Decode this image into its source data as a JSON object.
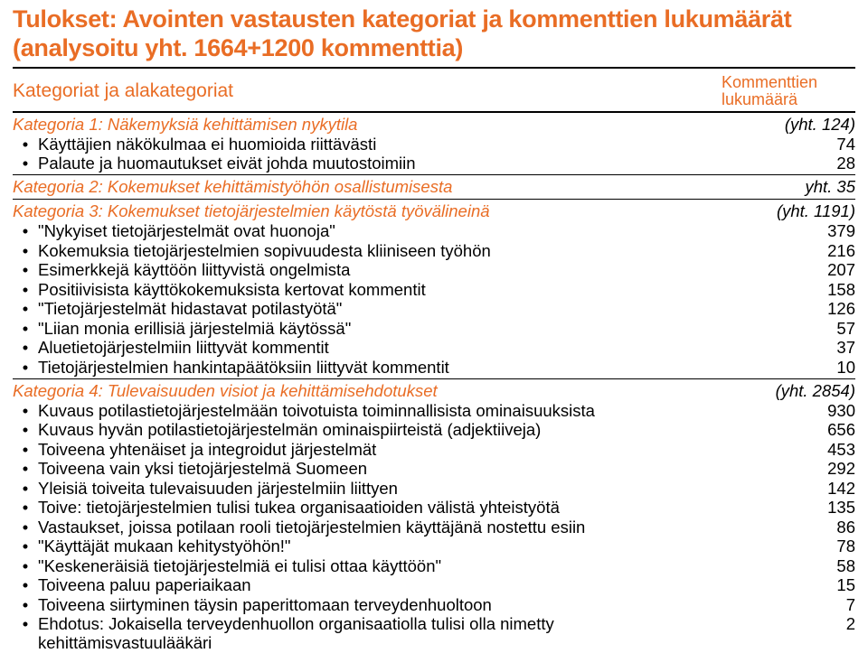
{
  "colors": {
    "accent": "#e96d25",
    "text": "#000000",
    "background": "#ffffff",
    "border": "#000000"
  },
  "title": "Tulokset: Avointen vastausten kategoriat ja kommenttien lukumäärät (analysoitu yht. 1664+1200 kommenttia)",
  "header": {
    "left": "Kategoriat ja alakategoriat",
    "right": "Kommenttien lukumäärä"
  },
  "sections": [
    {
      "title": "Kategoria 1: Näkemyksiä kehittämisen nykytila",
      "count": "(yht. 124)",
      "items": [
        {
          "text": "Käyttäjien näkökulmaa ei huomioida riittävästi",
          "count": "74"
        },
        {
          "text": "Palaute ja huomautukset eivät johda muutostoimiin",
          "count": "28"
        }
      ]
    },
    {
      "title": "Kategoria 2: Kokemukset kehittämistyöhön osallistumisesta",
      "count": "yht. 35",
      "items": []
    },
    {
      "title": "Kategoria 3: Kokemukset tietojärjestelmien käytöstä työvälineinä",
      "count": "(yht. 1191)",
      "items": [
        {
          "text": "\"Nykyiset tietojärjestelmät ovat huonoja\"",
          "count": "379"
        },
        {
          "text": "Kokemuksia tietojärjestelmien sopivuudesta kliiniseen työhön",
          "count": "216"
        },
        {
          "text": "Esimerkkejä käyttöön liittyvistä ongelmista",
          "count": "207"
        },
        {
          "text": "Positiivisista käyttökokemuksista kertovat kommentit",
          "count": "158"
        },
        {
          "text": "\"Tietojärjestelmät hidastavat potilastyötä\"",
          "count": "126"
        },
        {
          "text": "\"Liian monia erillisiä järjestelmiä käytössä\"",
          "count": "57"
        },
        {
          "text": "Aluetietojärjestelmiin liittyvät kommentit",
          "count": "37"
        },
        {
          "text": "Tietojärjestelmien hankintapäätöksiin liittyvät kommentit",
          "count": "10"
        }
      ]
    },
    {
      "title": "Kategoria 4: Tulevaisuuden visiot ja kehittämisehdotukset",
      "count": "(yht. 2854)",
      "items": [
        {
          "text": "Kuvaus potilastietojärjestelmään toivotuista toiminnallisista ominaisuuksista",
          "count": "930"
        },
        {
          "text": "Kuvaus hyvän potilastietojärjestelmän ominaispiirteistä (adjektiiveja)",
          "count": "656"
        },
        {
          "text": "Toiveena yhtenäiset ja integroidut järjestelmät",
          "count": "453"
        },
        {
          "text": "Toiveena vain yksi tietojärjestelmä Suomeen",
          "count": "292"
        },
        {
          "text": "Yleisiä toiveita tulevaisuuden järjestelmiin liittyen",
          "count": "142"
        },
        {
          "text": "Toive: tietojärjestelmien tulisi tukea organisaatioiden välistä yhteistyötä",
          "count": "135"
        },
        {
          "text": "Vastaukset, joissa potilaan rooli tietojärjestelmien käyttäjänä nostettu esiin",
          "count": "86"
        },
        {
          "text": "\"Käyttäjät mukaan kehitystyöhön!\"",
          "count": "78"
        },
        {
          "text": "\"Keskeneräisiä tietojärjestelmiä ei tulisi ottaa käyttöön\"",
          "count": "58"
        },
        {
          "text": "Toiveena paluu paperiaikaan",
          "count": "15"
        },
        {
          "text": "Toiveena siirtyminen täysin paperittomaan terveydenhuoltoon",
          "count": "7"
        },
        {
          "text": "Ehdotus: Jokaisella terveydenhuollon organisaatiolla tulisi olla nimetty kehittämisvastuulääkäri",
          "count": "2"
        }
      ]
    }
  ]
}
